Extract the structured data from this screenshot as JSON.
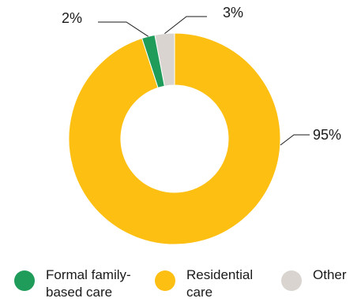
{
  "chart_data": {
    "type": "pie",
    "donut": true,
    "categories": [
      "Formal family-based care",
      "Residential care",
      "Other"
    ],
    "values": [
      2,
      95,
      3
    ],
    "value_labels": [
      "2%",
      "95%",
      "3%"
    ],
    "colors": [
      "#1f9b5a",
      "#fdbf12",
      "#d9d4cf"
    ],
    "legend_placement": "bottom",
    "title": ""
  },
  "legend": [
    {
      "lines": [
        "Formal family-",
        "based care"
      ],
      "color": "#1f9b5a"
    },
    {
      "lines": [
        "Residential",
        "care"
      ],
      "color": "#fdbf12"
    },
    {
      "lines": [
        "Other"
      ],
      "color": "#d9d4cf"
    }
  ]
}
